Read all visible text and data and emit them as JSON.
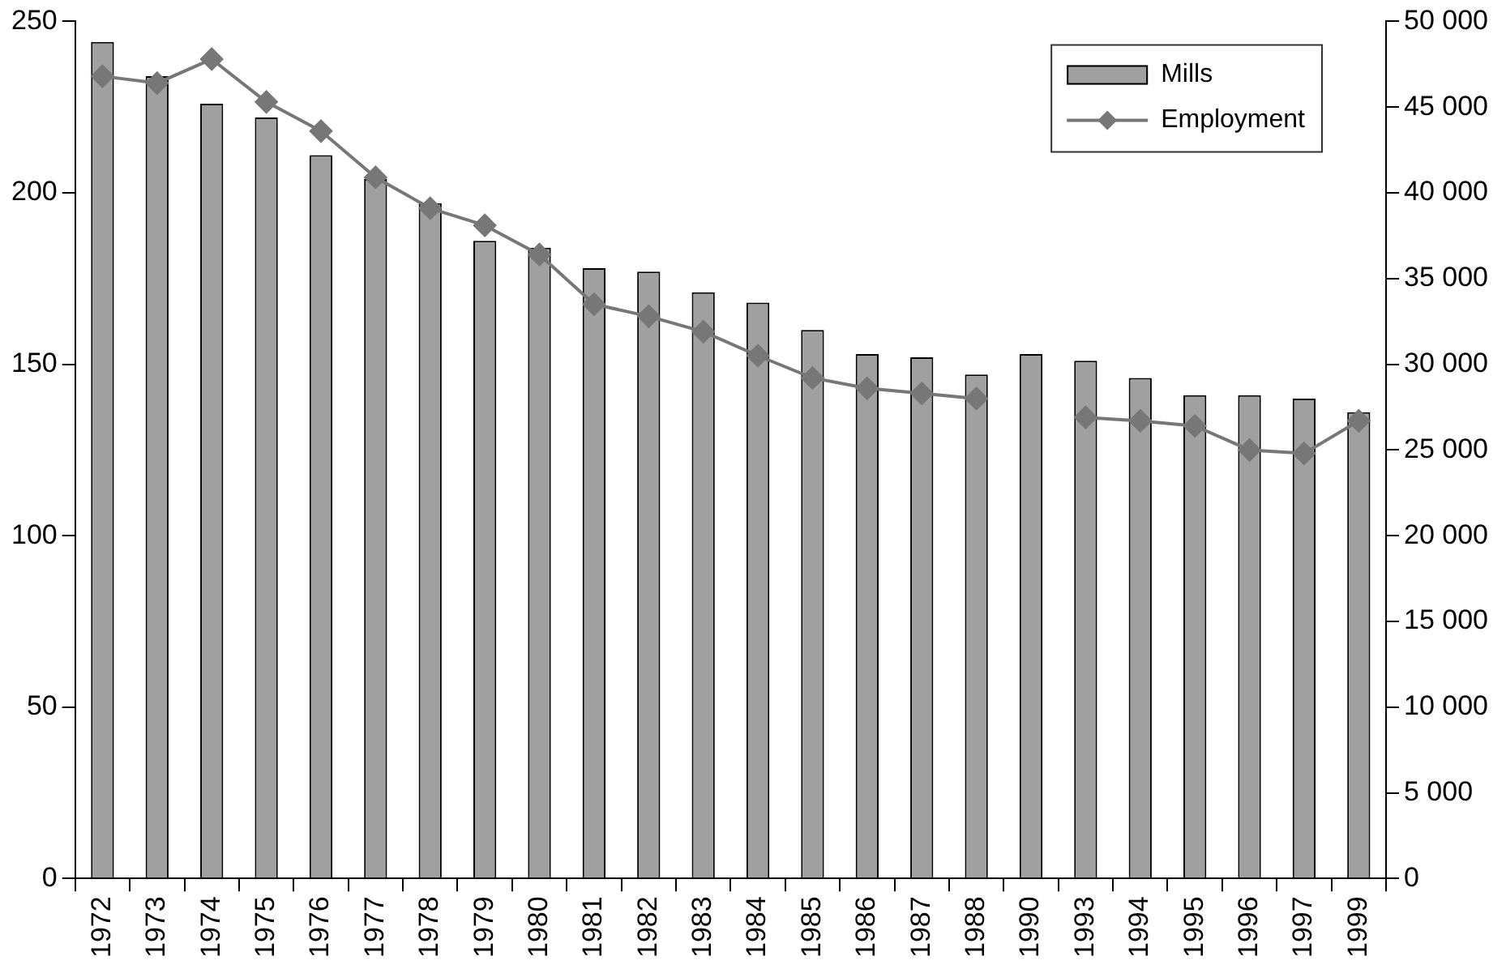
{
  "chart_data": {
    "type": "bar",
    "categories": [
      "1972",
      "1973",
      "1974",
      "1975",
      "1976",
      "1977",
      "1978",
      "1979",
      "1980",
      "1981",
      "1982",
      "1983",
      "1984",
      "1985",
      "1986",
      "1987",
      "1988",
      "1990",
      "1993",
      "1994",
      "1995",
      "1996",
      "1997",
      "1999"
    ],
    "series": [
      {
        "name": "Mills",
        "color": "#a0a0a0",
        "values": [
          244,
          234,
          226,
          222,
          211,
          204,
          197,
          186,
          184,
          178,
          177,
          171,
          168,
          160,
          153,
          152,
          147,
          153,
          151,
          146,
          141,
          141,
          140,
          136
        ]
      },
      {
        "name": "Employment",
        "type": "line",
        "axis": "y2",
        "color": "#777777",
        "marker": "diamond",
        "values": [
          46800,
          46400,
          47800,
          45300,
          43600,
          40900,
          39100,
          38100,
          36400,
          33500,
          32800,
          31900,
          30500,
          29200,
          28600,
          28300,
          28000,
          null,
          26900,
          26700,
          26400,
          25000,
          24800,
          26700
        ]
      }
    ],
    "ylim": [
      0,
      250
    ],
    "yticks": [
      0,
      50,
      100,
      150,
      200,
      250
    ],
    "y2lim": [
      0,
      50000
    ],
    "y2ticks": [
      {
        "value": 0,
        "label": "0"
      },
      {
        "value": 5000,
        "label": "5 000"
      },
      {
        "value": 10000,
        "label": "10 000"
      },
      {
        "value": 15000,
        "label": "15 000"
      },
      {
        "value": 20000,
        "label": "20 000"
      },
      {
        "value": 25000,
        "label": "25 000"
      },
      {
        "value": 30000,
        "label": "30 000"
      },
      {
        "value": 35000,
        "label": "35 000"
      },
      {
        "value": 40000,
        "label": "40 000"
      },
      {
        "value": 45000,
        "label": "45 000"
      },
      {
        "value": 50000,
        "label": "50 000"
      }
    ],
    "grid": false,
    "legend": "top right"
  }
}
